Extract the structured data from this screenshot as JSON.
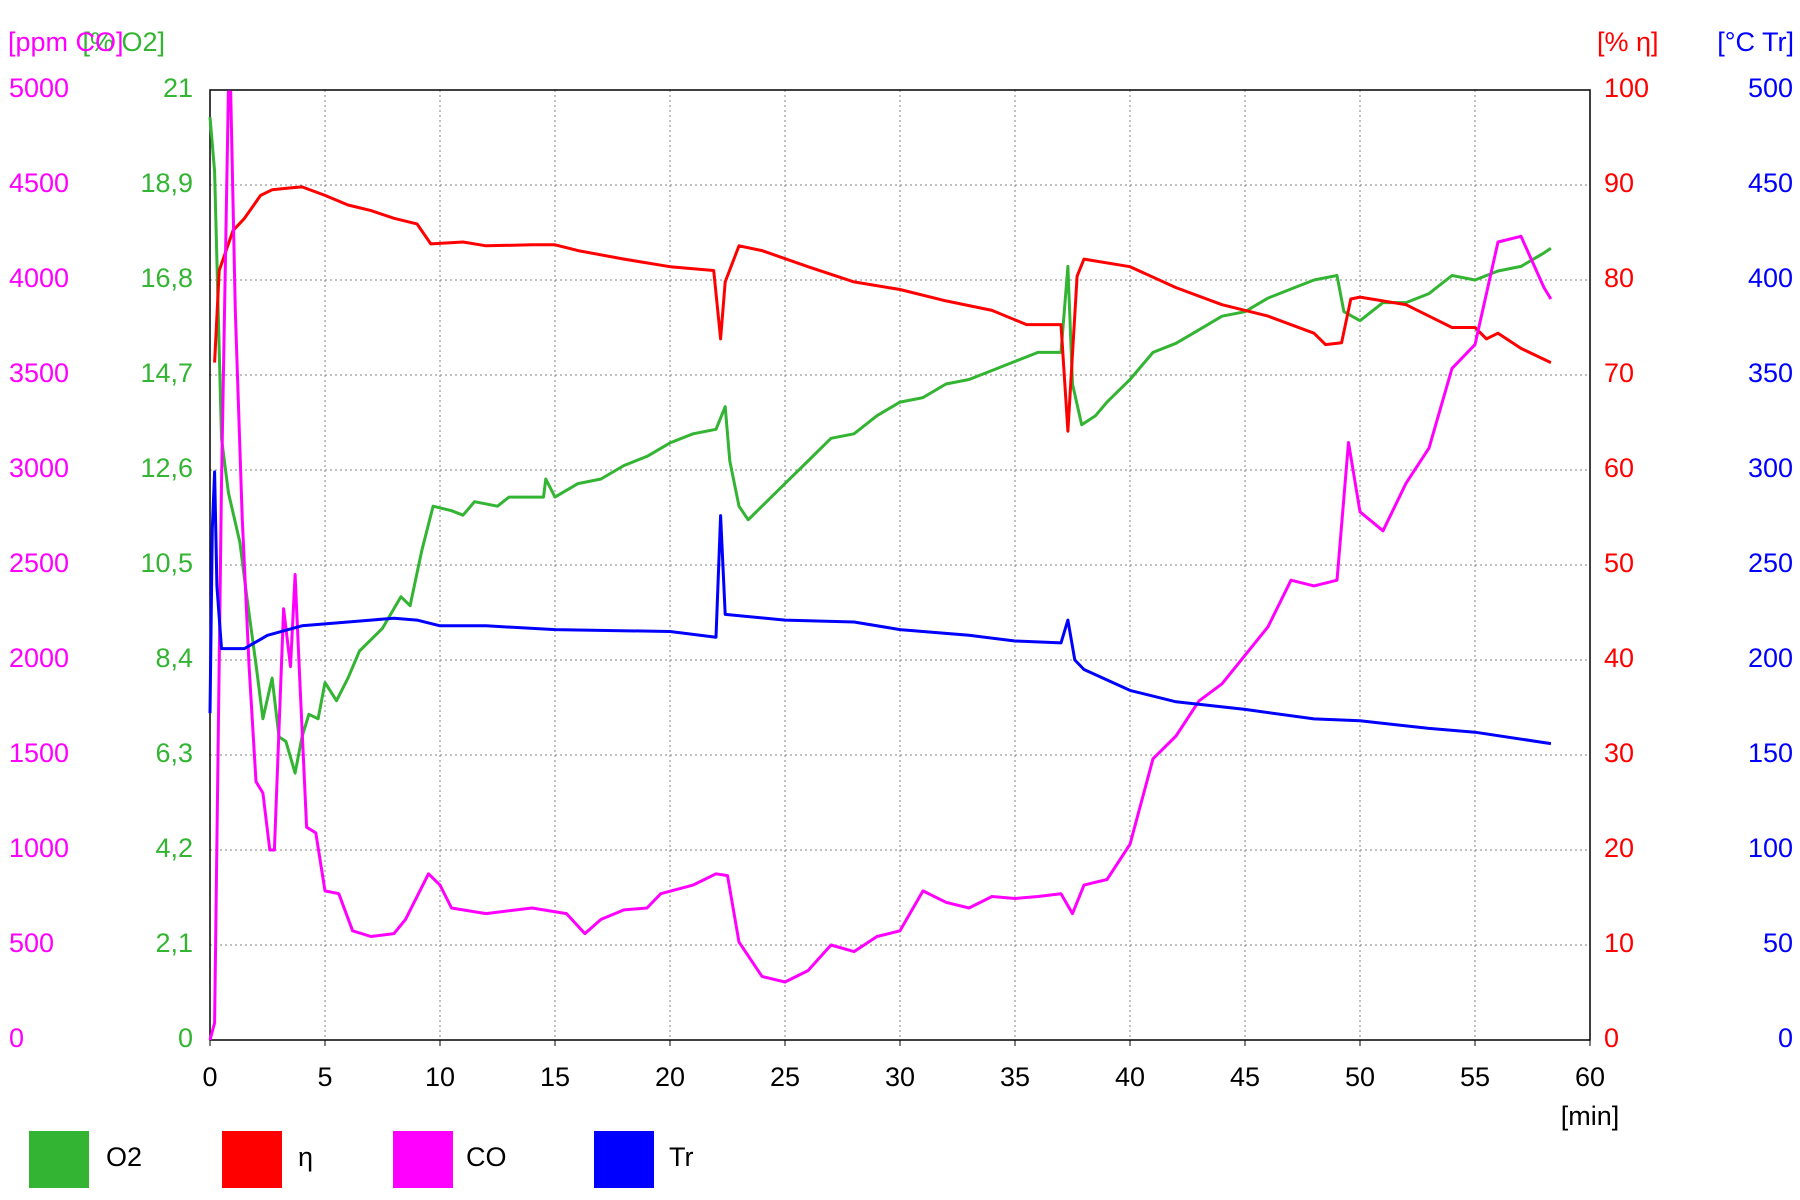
{
  "chart_data": {
    "type": "line",
    "x_label": "[min]",
    "xlim": [
      0,
      60
    ],
    "xticks": [
      0,
      5,
      10,
      15,
      20,
      25,
      30,
      35,
      40,
      45,
      50,
      55,
      60
    ],
    "grid": true,
    "series": [
      {
        "name": "O2",
        "color": "#33b433",
        "axis_label": "[% O2]",
        "ylim": [
          0,
          21
        ],
        "yticks": [
          0,
          {
            "value": 2.1,
            "label": "2,1"
          },
          {
            "value": 4.2,
            "label": "4,2"
          },
          {
            "value": 6.3,
            "label": "6,3"
          },
          {
            "value": 8.4,
            "label": "8,4"
          },
          {
            "value": 10.5,
            "label": "10,5"
          },
          {
            "value": 12.6,
            "label": "12,6"
          },
          {
            "value": 14.7,
            "label": "14,7"
          },
          {
            "value": 16.8,
            "label": "16,8"
          },
          {
            "value": 18.9,
            "label": "18,9"
          },
          21
        ],
        "x": [
          0,
          0.2,
          0.5,
          0.8,
          1.3,
          1.6,
          2.0,
          2.3,
          2.7,
          3.0,
          3.3,
          3.7,
          4.0,
          4.3,
          4.7,
          5.0,
          5.5,
          6.0,
          6.5,
          7.5,
          8.3,
          8.7,
          9.2,
          9.7,
          10.5,
          11,
          11.5,
          12.5,
          13,
          14.5,
          14.6,
          15,
          16,
          17,
          18,
          19,
          20,
          21,
          22,
          22.4,
          22.6,
          23,
          23.4,
          24,
          25,
          26,
          27,
          28,
          29,
          30,
          31,
          32,
          33,
          34,
          35,
          36,
          37,
          37.3,
          37.5,
          37.9,
          38.5,
          39,
          40,
          41,
          42,
          43,
          44,
          45,
          46,
          47,
          48,
          49,
          49.3,
          50,
          51,
          52,
          53,
          54,
          55,
          56,
          57,
          58,
          58.3
        ],
        "values": [
          20.4,
          19.2,
          13.3,
          12.1,
          11.0,
          9.8,
          8.3,
          7.1,
          8.0,
          6.7,
          6.6,
          5.9,
          6.7,
          7.2,
          7.1,
          7.9,
          7.5,
          8.0,
          8.6,
          9.1,
          9.8,
          9.6,
          10.8,
          11.8,
          11.7,
          11.6,
          11.9,
          11.8,
          12.0,
          12.0,
          12.4,
          12.0,
          12.3,
          12.4,
          12.7,
          12.9,
          13.2,
          13.4,
          13.5,
          14.0,
          12.8,
          11.8,
          11.5,
          11.8,
          12.3,
          12.8,
          13.3,
          13.4,
          13.8,
          14.1,
          14.2,
          14.5,
          14.6,
          14.8,
          15.0,
          15.2,
          15.2,
          17.1,
          14.5,
          13.6,
          13.8,
          14.1,
          14.6,
          15.2,
          15.4,
          15.7,
          16.0,
          16.1,
          16.4,
          16.6,
          16.8,
          16.9,
          16.1,
          15.9,
          16.3,
          16.3,
          16.5,
          16.9,
          16.8,
          17.0,
          17.1,
          17.4,
          17.5
        ]
      },
      {
        "name": "η",
        "color": "#ff0000",
        "axis_label": "[% η]",
        "ylim": [
          0,
          100
        ],
        "yticks": [
          0,
          10,
          20,
          30,
          40,
          50,
          60,
          70,
          80,
          90,
          100
        ],
        "x": [
          0.2,
          0.4,
          1,
          1.5,
          2.2,
          2.7,
          3.5,
          4,
          5,
          6,
          7,
          8,
          9,
          9.6,
          11,
          12,
          14,
          15,
          16,
          18,
          20,
          21.9,
          22.2,
          22.4,
          23,
          24,
          26,
          28,
          30,
          32,
          34,
          35.5,
          37,
          37.3,
          37.7,
          38,
          40,
          42,
          44,
          46,
          48,
          48.5,
          49.2,
          49.6,
          50,
          52,
          53.5,
          54,
          55,
          55.5,
          56,
          57,
          58.3
        ],
        "values": [
          71.3,
          81,
          85.2,
          86.5,
          88.9,
          89.5,
          89.7,
          89.8,
          88.9,
          87.9,
          87.3,
          86.5,
          85.9,
          83.8,
          84.0,
          83.6,
          83.7,
          83.7,
          83.1,
          82.2,
          81.4,
          81.0,
          73.8,
          79.8,
          83.6,
          83.1,
          81.4,
          79.8,
          79.0,
          77.8,
          76.8,
          75.3,
          75.3,
          64.1,
          80.4,
          82.2,
          81.4,
          79.2,
          77.4,
          76.2,
          74.4,
          73.2,
          73.4,
          78.0,
          78.2,
          77.4,
          75.6,
          75.0,
          75.0,
          73.8,
          74.4,
          72.8,
          71.3
        ]
      },
      {
        "name": "CO",
        "color": "#ff00ff",
        "axis_label": "[ppm CO]",
        "ylim": [
          0,
          5000
        ],
        "yticks": [
          0,
          500,
          1000,
          1500,
          2000,
          2500,
          3000,
          3500,
          4000,
          4500,
          5000
        ],
        "x": [
          0,
          0.2,
          0.5,
          0.8,
          0.9,
          1.1,
          1.4,
          1.7,
          2,
          2.3,
          2.6,
          2.8,
          3.2,
          3.5,
          3.7,
          3.9,
          4.2,
          4.6,
          5,
          5.6,
          6.2,
          7,
          8,
          8.5,
          9.5,
          10,
          10.5,
          12,
          14,
          15.5,
          16.3,
          17,
          18,
          19,
          19.6,
          21,
          22,
          22.5,
          23,
          24,
          25,
          26,
          27,
          28,
          29,
          30,
          31,
          32,
          33,
          34,
          35,
          36,
          37,
          37.5,
          38,
          39,
          40,
          41,
          42,
          43,
          44,
          45,
          46,
          47,
          48,
          49,
          49.5,
          50,
          51,
          52,
          53,
          54,
          55,
          56,
          57,
          58,
          58.3
        ],
        "values": [
          0,
          90,
          2930,
          4990,
          4990,
          3840,
          2750,
          1965,
          1360,
          1300,
          1000,
          1000,
          2270,
          1965,
          2450,
          1905,
          1120,
          1090,
          785,
          770,
          575,
          545,
          560,
          635,
          875,
          815,
          695,
          665,
          695,
          665,
          560,
          635,
          685,
          695,
          770,
          815,
          875,
          865,
          515,
          335,
          305,
          365,
          500,
          465,
          545,
          575,
          785,
          725,
          695,
          755,
          745,
          755,
          770,
          665,
          815,
          845,
          1030,
          1480,
          1600,
          1785,
          1875,
          2025,
          2175,
          2420,
          2390,
          2420,
          3145,
          2780,
          2680,
          2930,
          3115,
          3535,
          3660,
          4200,
          4230,
          3960,
          3900
        ]
      },
      {
        "name": "Tr",
        "color": "#0000ff",
        "axis_label": "[°C Tr]",
        "ylim": [
          0,
          500
        ],
        "yticks": [
          0,
          50,
          100,
          150,
          200,
          250,
          300,
          350,
          400,
          450,
          500
        ],
        "x": [
          0,
          0.1,
          0.2,
          0.3,
          0.5,
          1.5,
          2.5,
          4,
          5,
          7,
          8,
          9,
          10,
          12,
          15,
          20,
          22,
          22.2,
          22.4,
          25,
          28,
          30,
          33,
          35,
          37,
          37.3,
          37.6,
          38,
          40,
          42,
          45,
          48,
          50,
          53,
          55,
          58.3
        ],
        "values": [
          172,
          269,
          299,
          239,
          206,
          206,
          213,
          218,
          219,
          221,
          222,
          221,
          218,
          218,
          216,
          215,
          212,
          276,
          224,
          221,
          220,
          216,
          213,
          210,
          209,
          221,
          200,
          195,
          184,
          178,
          174,
          169,
          168,
          164,
          162,
          156
        ]
      }
    ]
  }
}
